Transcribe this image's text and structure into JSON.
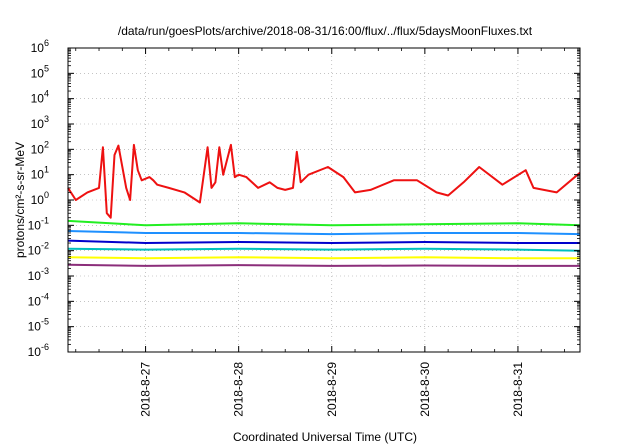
{
  "chart_data": {
    "type": "line",
    "title": "/data/run/goesPlots/archive/2018-08-31/16:00/flux/../flux/5daysMoonFluxes.txt",
    "xlabel": "Coordinated Universal Time (UTC)",
    "ylabel": "protons/cm²-s-sr-MeV",
    "yscale": "log",
    "ylim": [
      1e-06,
      1000000.0
    ],
    "xlim": [
      "2018-08-26T04:00",
      "2018-08-31T16:00"
    ],
    "grid": "dotted",
    "y_ticks": [
      {
        "base": "10",
        "exp": "-6"
      },
      {
        "base": "10",
        "exp": "-5"
      },
      {
        "base": "10",
        "exp": "-4"
      },
      {
        "base": "10",
        "exp": "-3"
      },
      {
        "base": "10",
        "exp": "-2"
      },
      {
        "base": "10",
        "exp": "-1"
      },
      {
        "base": "10",
        "exp": "0"
      },
      {
        "base": "10",
        "exp": "1"
      },
      {
        "base": "10",
        "exp": "2"
      },
      {
        "base": "10",
        "exp": "3"
      },
      {
        "base": "10",
        "exp": "4"
      },
      {
        "base": "10",
        "exp": "5"
      },
      {
        "base": "10",
        "exp": "6"
      }
    ],
    "x_ticks": [
      "2018-8-27",
      "2018-8-28",
      "2018-8-29",
      "2018-8-30",
      "2018-8-31"
    ],
    "series": [
      {
        "color": "#ee1111",
        "x": [
          "2018-08-26T04:00",
          "2018-08-26T06:00",
          "2018-08-26T09:00",
          "2018-08-26T12:00",
          "2018-08-26T13:00",
          "2018-08-26T14:00",
          "2018-08-26T15:00",
          "2018-08-26T16:00",
          "2018-08-26T17:00",
          "2018-08-26T19:00",
          "2018-08-26T20:00",
          "2018-08-26T21:00",
          "2018-08-26T22:00",
          "2018-08-26T23:00",
          "2018-08-27T01:00",
          "2018-08-27T02:00",
          "2018-08-27T03:00",
          "2018-08-27T06:00",
          "2018-08-27T10:00",
          "2018-08-27T14:00",
          "2018-08-27T16:00",
          "2018-08-27T17:00",
          "2018-08-27T18:00",
          "2018-08-27T19:00",
          "2018-08-27T20:00",
          "2018-08-27T22:00",
          "2018-08-27T23:00",
          "2018-08-28T00:00",
          "2018-08-28T02:00",
          "2018-08-28T05:00",
          "2018-08-28T08:00",
          "2018-08-28T10:00",
          "2018-08-28T12:00",
          "2018-08-28T14:00",
          "2018-08-28T15:00",
          "2018-08-28T16:00",
          "2018-08-28T18:00",
          "2018-08-28T23:00",
          "2018-08-29T03:00",
          "2018-08-29T06:00",
          "2018-08-29T10:00",
          "2018-08-29T16:00",
          "2018-08-29T22:00",
          "2018-08-30T03:00",
          "2018-08-30T06:00",
          "2018-08-30T10:00",
          "2018-08-30T14:00",
          "2018-08-30T20:00",
          "2018-08-31T02:00",
          "2018-08-31T04:00",
          "2018-08-31T10:00",
          "2018-08-31T16:00"
        ],
        "values": [
          3,
          1,
          2,
          3,
          120,
          0.3,
          0.2,
          60,
          140,
          3,
          1,
          150,
          15,
          6,
          8,
          6,
          4,
          3,
          2,
          0.8,
          120,
          3,
          5,
          120,
          10,
          150,
          8,
          10,
          8,
          3,
          5,
          3,
          2.5,
          3,
          80,
          5,
          10,
          20,
          8,
          2,
          2.5,
          6,
          6,
          2,
          1.5,
          5,
          20,
          4,
          15,
          3,
          2,
          12
        ]
      },
      {
        "color": "#22ee22",
        "x": [
          "2018-08-26T04:00",
          "2018-08-27T00:00",
          "2018-08-28T00:00",
          "2018-08-29T00:00",
          "2018-08-30T00:00",
          "2018-08-31T00:00",
          "2018-08-31T16:00"
        ],
        "values": [
          0.15,
          0.1,
          0.12,
          0.1,
          0.11,
          0.12,
          0.1
        ]
      },
      {
        "color": "#1e90ff",
        "x": [
          "2018-08-26T04:00",
          "2018-08-27T00:00",
          "2018-08-28T00:00",
          "2018-08-29T00:00",
          "2018-08-30T00:00",
          "2018-08-31T00:00",
          "2018-08-31T16:00"
        ],
        "values": [
          0.06,
          0.05,
          0.05,
          0.045,
          0.05,
          0.05,
          0.045
        ]
      },
      {
        "color": "#0000cc",
        "x": [
          "2018-08-26T04:00",
          "2018-08-27T00:00",
          "2018-08-28T00:00",
          "2018-08-29T00:00",
          "2018-08-30T00:00",
          "2018-08-31T00:00",
          "2018-08-31T16:00"
        ],
        "values": [
          0.025,
          0.02,
          0.022,
          0.02,
          0.022,
          0.02,
          0.02
        ]
      },
      {
        "color": "#00bfbf",
        "x": [
          "2018-08-26T04:00",
          "2018-08-27T00:00",
          "2018-08-28T00:00",
          "2018-08-29T00:00",
          "2018-08-30T00:00",
          "2018-08-31T00:00",
          "2018-08-31T16:00"
        ],
        "values": [
          0.012,
          0.011,
          0.012,
          0.011,
          0.012,
          0.011,
          0.01
        ]
      },
      {
        "color": "#ffff00",
        "x": [
          "2018-08-26T04:00",
          "2018-08-27T00:00",
          "2018-08-28T00:00",
          "2018-08-29T00:00",
          "2018-08-30T00:00",
          "2018-08-31T00:00",
          "2018-08-31T16:00"
        ],
        "values": [
          0.0055,
          0.005,
          0.0055,
          0.005,
          0.0055,
          0.005,
          0.005
        ]
      },
      {
        "color": "#8b2e7a",
        "x": [
          "2018-08-26T04:00",
          "2018-08-27T00:00",
          "2018-08-28T00:00",
          "2018-08-29T00:00",
          "2018-08-30T00:00",
          "2018-08-31T00:00",
          "2018-08-31T16:00"
        ],
        "values": [
          0.0028,
          0.0025,
          0.0027,
          0.0025,
          0.0026,
          0.0025,
          0.0025
        ]
      }
    ]
  }
}
